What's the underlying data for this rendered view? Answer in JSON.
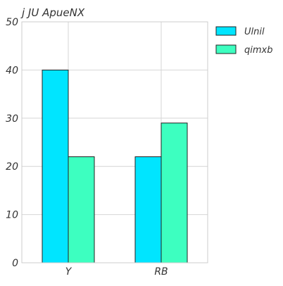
{
  "chart_data": {
    "type": "bar",
    "title": "j  JU ApueNX",
    "xlabel": "",
    "ylabel": "",
    "categories": [
      "Y",
      "RB"
    ],
    "series": [
      {
        "name": "Ulnil",
        "values": [
          40,
          22
        ],
        "color": "#00e5ff"
      },
      {
        "name": "qimxb",
        "values": [
          22,
          29
        ],
        "color": "#3dffc0"
      }
    ],
    "ylim": [
      0,
      50
    ],
    "yticks": [
      0,
      10,
      20,
      30,
      40,
      50
    ],
    "grid": true,
    "legend": "upper-right-outside"
  }
}
